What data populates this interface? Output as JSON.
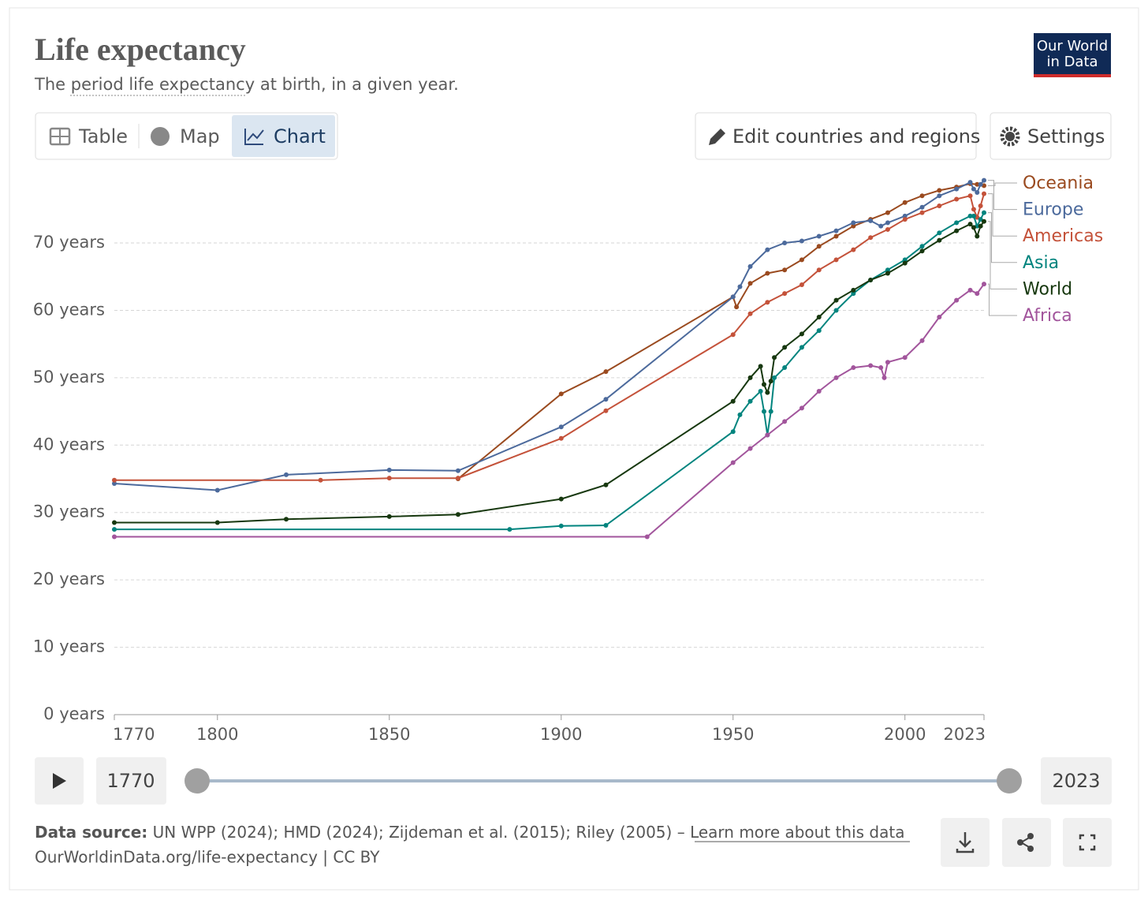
{
  "header": {
    "title": "Life expectancy",
    "subtitle": [
      "The",
      "period life expectancy",
      "at birth, in a given year."
    ],
    "logo": [
      "Our World",
      "in Data"
    ]
  },
  "controls": {
    "tabs": [
      "Table",
      "Map",
      "Chart"
    ],
    "edit": "Edit countries and regions",
    "settings": "Settings"
  },
  "footer": {
    "source_label": "Data source:",
    "source": "UN WPP (2024); HMD (2024); Zijdeman et al. (2015); Riley (2005) –",
    "link": "Learn more about this data",
    "url": "OurWorldinData.org/life-expectancy | CC BY"
  },
  "chart_data": {
    "type": "line",
    "xlim": [
      1770,
      2023
    ],
    "xticks": [
      1770,
      1800,
      1850,
      1900,
      1950,
      2000,
      2023
    ],
    "ylim": [
      0,
      80
    ],
    "yticks": [
      {
        "value": 0,
        "label": "0 years"
      },
      {
        "value": 10,
        "label": "10 years"
      },
      {
        "value": 20,
        "label": "20 years"
      },
      {
        "value": 30,
        "label": "30 years"
      },
      {
        "value": 40,
        "label": "40 years"
      },
      {
        "value": 50,
        "label": "50 years"
      },
      {
        "value": 60,
        "label": "60 years"
      },
      {
        "value": 70,
        "label": "70 years"
      }
    ],
    "grid": true,
    "series": [
      {
        "name": "Oceania",
        "color": "#9a4a1f",
        "x": [
          1870,
          1900,
          1913,
          1950,
          1951,
          1955,
          1960,
          1965,
          1970,
          1975,
          1980,
          1985,
          1990,
          1995,
          2000,
          2005,
          2010,
          2015,
          2019,
          2021,
          2023
        ],
        "values": [
          35.0,
          47.6,
          50.9,
          62.0,
          60.5,
          64.0,
          65.5,
          66.0,
          67.5,
          69.5,
          71.0,
          72.5,
          73.5,
          74.5,
          76.0,
          77.0,
          77.8,
          78.3,
          78.8,
          78.7,
          78.5
        ]
      },
      {
        "name": "Europe",
        "color": "#4c6a9c",
        "x": [
          1770,
          1800,
          1820,
          1850,
          1870,
          1900,
          1913,
          1950,
          1952,
          1955,
          1960,
          1965,
          1970,
          1975,
          1980,
          1985,
          1990,
          1993,
          1995,
          2000,
          2005,
          2010,
          2015,
          2019,
          2020,
          2021,
          2022,
          2023
        ],
        "values": [
          34.3,
          33.3,
          35.6,
          36.3,
          36.2,
          42.7,
          46.8,
          62.0,
          63.5,
          66.5,
          69.0,
          70.0,
          70.3,
          71.0,
          71.8,
          73.0,
          73.3,
          72.5,
          73.0,
          74.0,
          75.3,
          77.0,
          78.0,
          79.0,
          78.0,
          77.5,
          78.7,
          79.3
        ]
      },
      {
        "name": "Americas",
        "color": "#c4523a",
        "x": [
          1770,
          1830,
          1850,
          1870,
          1900,
          1913,
          1950,
          1955,
          1960,
          1965,
          1970,
          1975,
          1980,
          1985,
          1990,
          1995,
          2000,
          2005,
          2010,
          2015,
          2019,
          2020,
          2021,
          2022,
          2023
        ],
        "values": [
          34.8,
          34.8,
          35.1,
          35.1,
          41.0,
          45.1,
          56.4,
          59.5,
          61.2,
          62.5,
          63.8,
          66.0,
          67.5,
          69.0,
          70.8,
          72.0,
          73.5,
          74.5,
          75.5,
          76.5,
          77.0,
          75.0,
          73.8,
          75.5,
          77.3
        ]
      },
      {
        "name": "Asia",
        "color": "#00847e",
        "x": [
          1770,
          1885,
          1900,
          1913,
          1950,
          1952,
          1955,
          1958,
          1959,
          1960,
          1961,
          1962,
          1965,
          1970,
          1975,
          1980,
          1985,
          1990,
          1995,
          2000,
          2005,
          2010,
          2015,
          2019,
          2020,
          2021,
          2022,
          2023
        ],
        "values": [
          27.5,
          27.5,
          28.0,
          28.1,
          42.0,
          44.5,
          46.5,
          48.0,
          45.0,
          41.5,
          45.0,
          50.0,
          51.5,
          54.5,
          57.0,
          60.0,
          62.5,
          64.5,
          66.0,
          67.5,
          69.5,
          71.5,
          73.0,
          74.0,
          74.0,
          72.5,
          73.5,
          74.5
        ]
      },
      {
        "name": "World",
        "color": "#17380f",
        "x": [
          1770,
          1800,
          1820,
          1850,
          1870,
          1900,
          1913,
          1950,
          1955,
          1958,
          1959,
          1960,
          1961,
          1962,
          1965,
          1970,
          1975,
          1980,
          1985,
          1990,
          1995,
          2000,
          2005,
          2010,
          2015,
          2019,
          2020,
          2021,
          2022,
          2023
        ],
        "values": [
          28.5,
          28.5,
          29.0,
          29.4,
          29.7,
          32.0,
          34.1,
          46.5,
          50.0,
          51.7,
          49.0,
          47.8,
          49.5,
          53.0,
          54.5,
          56.5,
          59.0,
          61.5,
          63.0,
          64.5,
          65.5,
          67.0,
          68.8,
          70.4,
          71.8,
          72.8,
          72.3,
          71.0,
          72.5,
          73.2
        ]
      },
      {
        "name": "Africa",
        "color": "#a2559c",
        "x": [
          1770,
          1925,
          1950,
          1955,
          1960,
          1965,
          1970,
          1975,
          1980,
          1985,
          1990,
          1993,
          1994,
          1995,
          2000,
          2005,
          2010,
          2015,
          2019,
          2021,
          2023
        ],
        "values": [
          26.4,
          26.4,
          37.4,
          39.5,
          41.5,
          43.5,
          45.5,
          48.0,
          50.0,
          51.5,
          51.8,
          51.5,
          50.0,
          52.3,
          53.0,
          55.5,
          59.0,
          61.5,
          63.0,
          62.5,
          63.9
        ]
      }
    ]
  }
}
